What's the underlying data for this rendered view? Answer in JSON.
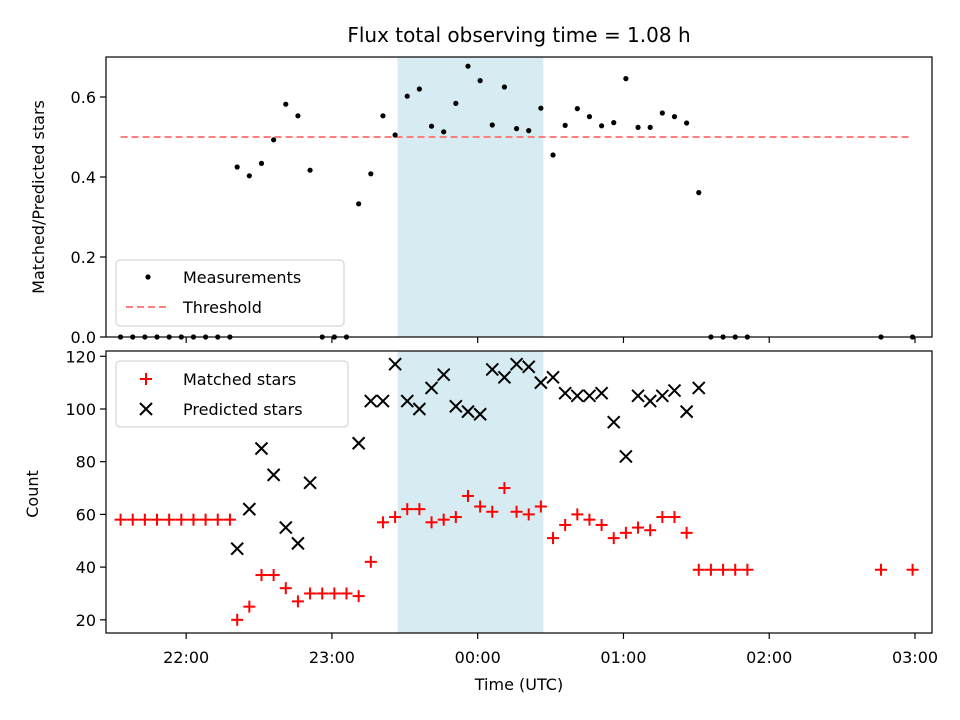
{
  "chart_data": {
    "title": "Flux total observing time = 1.08 h",
    "xlabel": "Time (UTC)",
    "x_ticks": [
      "22:00",
      "23:00",
      "00:00",
      "01:00",
      "02:00",
      "03:00"
    ],
    "x_range": [
      "21:27",
      "03:07"
    ],
    "shaded_region": {
      "start": "23:27",
      "end": "00:27",
      "color": "#add8e6"
    },
    "top": {
      "type": "scatter",
      "ylabel": "Matched/Predicted stars",
      "ylim": [
        0,
        0.7
      ],
      "y_ticks": [
        "0.0",
        "0.2",
        "0.4",
        "0.6"
      ],
      "threshold": 0.5,
      "threshold_color": "#ff7f7f",
      "legend": {
        "placement": "lower-left",
        "entries": [
          "Measurements",
          "Threshold"
        ]
      },
      "measurements": [
        [
          "21:33",
          0.0
        ],
        [
          "21:38",
          0.0
        ],
        [
          "21:43",
          0.0
        ],
        [
          "21:48",
          0.0
        ],
        [
          "21:53",
          0.0
        ],
        [
          "21:58",
          0.0
        ],
        [
          "22:03",
          0.0
        ],
        [
          "22:08",
          0.0
        ],
        [
          "22:13",
          0.0
        ],
        [
          "22:18",
          0.0
        ],
        [
          "22:21",
          0.425
        ],
        [
          "22:26",
          0.403
        ],
        [
          "22:31",
          0.434
        ],
        [
          "22:36",
          0.493
        ],
        [
          "22:41",
          0.582
        ],
        [
          "22:46",
          0.553
        ],
        [
          "22:51",
          0.417
        ],
        [
          "22:56",
          0.0
        ],
        [
          "23:01",
          0.0
        ],
        [
          "23:06",
          0.0
        ],
        [
          "23:11",
          0.333
        ],
        [
          "23:16",
          0.408
        ],
        [
          "23:21",
          0.553
        ],
        [
          "23:26",
          0.505
        ],
        [
          "23:31",
          0.602
        ],
        [
          "23:36",
          0.62
        ],
        [
          "23:41",
          0.527
        ],
        [
          "23:46",
          0.513
        ],
        [
          "23:51",
          0.584
        ],
        [
          "23:56",
          0.677
        ],
        [
          "00:01",
          0.641
        ],
        [
          "00:06",
          0.53
        ],
        [
          "00:11",
          0.625
        ],
        [
          "00:16",
          0.521
        ],
        [
          "00:21",
          0.516
        ],
        [
          "00:26",
          0.572
        ],
        [
          "00:31",
          0.455
        ],
        [
          "00:36",
          0.529
        ],
        [
          "00:41",
          0.571
        ],
        [
          "00:46",
          0.551
        ],
        [
          "00:51",
          0.528
        ],
        [
          "00:56",
          0.536
        ],
        [
          "01:01",
          0.646
        ],
        [
          "01:06",
          0.524
        ],
        [
          "01:11",
          0.524
        ],
        [
          "01:16",
          0.56
        ],
        [
          "01:21",
          0.551
        ],
        [
          "01:26",
          0.535
        ],
        [
          "01:31",
          0.361
        ],
        [
          "01:36",
          0.0
        ],
        [
          "01:41",
          0.0
        ],
        [
          "01:46",
          0.0
        ],
        [
          "01:51",
          0.0
        ],
        [
          "02:46",
          0.0
        ],
        [
          "02:59",
          0.0
        ]
      ]
    },
    "bottom": {
      "type": "scatter",
      "ylabel": "Count",
      "ylim": [
        15,
        122
      ],
      "y_ticks": [
        "20",
        "40",
        "60",
        "80",
        "100",
        "120"
      ],
      "legend": {
        "placement": "upper-left"
      },
      "series": [
        {
          "name": "Matched stars",
          "marker": "plus",
          "color": "#ff0000",
          "points": [
            [
              "21:33",
              58
            ],
            [
              "21:38",
              58
            ],
            [
              "21:43",
              58
            ],
            [
              "21:48",
              58
            ],
            [
              "21:53",
              58
            ],
            [
              "21:58",
              58
            ],
            [
              "22:03",
              58
            ],
            [
              "22:08",
              58
            ],
            [
              "22:13",
              58
            ],
            [
              "22:18",
              58
            ],
            [
              "22:21",
              20
            ],
            [
              "22:26",
              25
            ],
            [
              "22:31",
              37
            ],
            [
              "22:36",
              37
            ],
            [
              "22:41",
              32
            ],
            [
              "22:46",
              27
            ],
            [
              "22:51",
              30
            ],
            [
              "22:56",
              30
            ],
            [
              "23:01",
              30
            ],
            [
              "23:06",
              30
            ],
            [
              "23:11",
              29
            ],
            [
              "23:16",
              42
            ],
            [
              "23:21",
              57
            ],
            [
              "23:26",
              59
            ],
            [
              "23:31",
              62
            ],
            [
              "23:36",
              62
            ],
            [
              "23:41",
              57
            ],
            [
              "23:46",
              58
            ],
            [
              "23:51",
              59
            ],
            [
              "23:56",
              67
            ],
            [
              "00:01",
              63
            ],
            [
              "00:06",
              61
            ],
            [
              "00:11",
              70
            ],
            [
              "00:16",
              61
            ],
            [
              "00:21",
              60
            ],
            [
              "00:26",
              63
            ],
            [
              "00:31",
              51
            ],
            [
              "00:36",
              56
            ],
            [
              "00:41",
              60
            ],
            [
              "00:46",
              58
            ],
            [
              "00:51",
              56
            ],
            [
              "00:56",
              51
            ],
            [
              "01:01",
              53
            ],
            [
              "01:06",
              55
            ],
            [
              "01:11",
              54
            ],
            [
              "01:16",
              59
            ],
            [
              "01:21",
              59
            ],
            [
              "01:26",
              53
            ],
            [
              "01:31",
              39
            ],
            [
              "01:36",
              39
            ],
            [
              "01:41",
              39
            ],
            [
              "01:46",
              39
            ],
            [
              "01:51",
              39
            ],
            [
              "02:46",
              39
            ],
            [
              "02:59",
              39
            ]
          ]
        },
        {
          "name": "Predicted stars",
          "marker": "x",
          "color": "#000000",
          "points": [
            [
              "22:21",
              47
            ],
            [
              "22:26",
              62
            ],
            [
              "22:31",
              85
            ],
            [
              "22:36",
              75
            ],
            [
              "22:41",
              55
            ],
            [
              "22:46",
              49
            ],
            [
              "22:51",
              72
            ],
            [
              "23:11",
              87
            ],
            [
              "23:16",
              103
            ],
            [
              "23:21",
              103
            ],
            [
              "23:26",
              117
            ],
            [
              "23:31",
              103
            ],
            [
              "23:36",
              100
            ],
            [
              "23:41",
              108
            ],
            [
              "23:46",
              113
            ],
            [
              "23:51",
              101
            ],
            [
              "23:56",
              99
            ],
            [
              "00:01",
              98
            ],
            [
              "00:06",
              115
            ],
            [
              "00:11",
              112
            ],
            [
              "00:16",
              117
            ],
            [
              "00:21",
              116
            ],
            [
              "00:26",
              110
            ],
            [
              "00:31",
              112
            ],
            [
              "00:36",
              106
            ],
            [
              "00:41",
              105
            ],
            [
              "00:46",
              105
            ],
            [
              "00:51",
              106
            ],
            [
              "00:56",
              95
            ],
            [
              "01:01",
              82
            ],
            [
              "01:06",
              105
            ],
            [
              "01:11",
              103
            ],
            [
              "01:16",
              105
            ],
            [
              "01:21",
              107
            ],
            [
              "01:26",
              99
            ],
            [
              "01:31",
              108
            ]
          ]
        }
      ]
    }
  }
}
